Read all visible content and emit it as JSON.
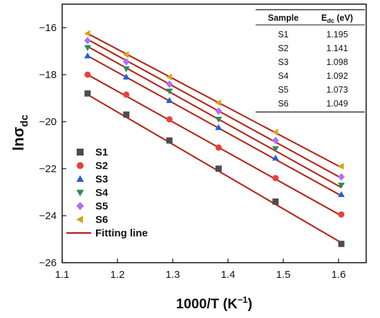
{
  "chart_data": {
    "type": "scatter",
    "xlabel": "1000/T (K",
    "xlabel_sup": "−1",
    "xlabel_tail": ")",
    "ylabel": "lnσ",
    "ylabel_sub": "dc",
    "xlim": [
      1.1,
      1.65
    ],
    "ylim": [
      -26,
      -15
    ],
    "xticks": [
      "1.1",
      "1.2",
      "1.3",
      "1.4",
      "1.5",
      "1.6"
    ],
    "yticks": [
      "−26",
      "−24",
      "−22",
      "−20",
      "−18",
      "−16"
    ],
    "grid": false,
    "legend_position": "bottom-left",
    "x": [
      1.146,
      1.216,
      1.294,
      1.383,
      1.486,
      1.605
    ],
    "series": [
      {
        "name": "S1",
        "marker": "square",
        "color": "#4d4d4d",
        "values": [
          -18.8,
          -19.7,
          -20.8,
          -22.0,
          -23.4,
          -25.2
        ],
        "fit": [
          -18.85,
          -25.15
        ]
      },
      {
        "name": "S2",
        "marker": "circle",
        "color": "#e8403a",
        "values": [
          -18.0,
          -18.85,
          -19.9,
          -21.1,
          -22.4,
          -23.95
        ],
        "fit": [
          -18.0,
          -24.0
        ]
      },
      {
        "name": "S3",
        "marker": "triangle-up",
        "color": "#1f5fe0",
        "values": [
          -17.2,
          -18.1,
          -19.1,
          -20.25,
          -21.55,
          -23.1
        ],
        "fit": [
          -17.2,
          -23.15
        ]
      },
      {
        "name": "S4",
        "marker": "triangle-down",
        "color": "#2a8c5a",
        "values": [
          -16.85,
          -17.75,
          -18.7,
          -19.9,
          -21.15,
          -22.7
        ],
        "fit": [
          -16.8,
          -22.8
        ]
      },
      {
        "name": "S5",
        "marker": "diamond",
        "color": "#b46ff0",
        "values": [
          -16.55,
          -17.45,
          -18.4,
          -19.55,
          -20.8,
          -22.35
        ],
        "fit": [
          -16.5,
          -22.4
        ]
      },
      {
        "name": "S6",
        "marker": "triangle-left",
        "color": "#d9a21b",
        "values": [
          -16.25,
          -17.15,
          -18.1,
          -19.2,
          -20.45,
          -21.9
        ],
        "fit": [
          -16.25,
          -21.95
        ]
      }
    ],
    "fit_label": "Fitting line",
    "fit_color": "#b22a1c",
    "table": {
      "headers": [
        "Sample",
        "E",
        "dc",
        " (eV)"
      ],
      "rows": [
        [
          "S1",
          "1.195"
        ],
        [
          "S2",
          "1.141"
        ],
        [
          "S3",
          "1.098"
        ],
        [
          "S4",
          "1.092"
        ],
        [
          "S5",
          "1.073"
        ],
        [
          "S6",
          "1.049"
        ]
      ]
    }
  }
}
